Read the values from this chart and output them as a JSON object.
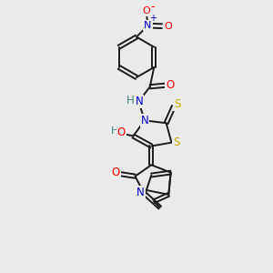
{
  "bg_color": "#eaeaea",
  "bond_color": "#1a1a1a",
  "bond_width": 1.4,
  "atom_colors": {
    "O": "#ff0000",
    "N": "#0000cc",
    "S": "#ccaa00",
    "H": "#3d8080",
    "C": "#1a1a1a"
  }
}
